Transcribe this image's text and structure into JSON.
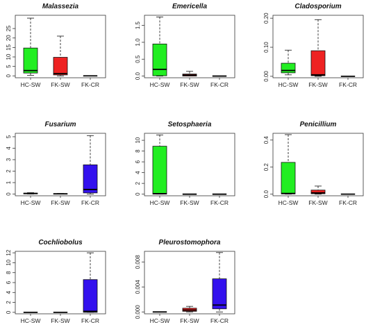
{
  "colors": {
    "HC-SW": "#22ee22",
    "FK-SW": "#ee2222",
    "FK-CR": "#3311ee"
  },
  "chart_data": [
    {
      "type": "box",
      "title": "Malassezia",
      "categories": [
        "HC-SW",
        "FK-SW",
        "FK-CR"
      ],
      "yticks": [
        0,
        5,
        10,
        15,
        20,
        25
      ],
      "ylim": [
        -1,
        32
      ],
      "boxes": [
        {
          "min": 0.3,
          "q1": 1.5,
          "median": 2.8,
          "q3": 14.7,
          "max": 30.5
        },
        {
          "min": 0,
          "q1": 0.5,
          "median": 1.2,
          "q3": 9.8,
          "max": 21
        },
        {
          "min": 0,
          "q1": 0,
          "median": 0,
          "q3": 0,
          "max": 0
        }
      ]
    },
    {
      "type": "box",
      "title": "Emericella",
      "categories": [
        "HC-SW",
        "FK-SW",
        "FK-CR"
      ],
      "yticks": [
        0.0,
        0.5,
        1.0,
        1.5
      ],
      "ytick_labels": [
        "0.0",
        "0.5",
        "1.0",
        "1.5"
      ],
      "ylim": [
        -0.05,
        1.8
      ],
      "boxes": [
        {
          "min": 0,
          "q1": 0.01,
          "median": 0.2,
          "q3": 0.95,
          "max": 1.75
        },
        {
          "min": 0,
          "q1": 0,
          "median": 0.03,
          "q3": 0.06,
          "max": 0.14
        },
        {
          "min": 0,
          "q1": 0,
          "median": 0,
          "q3": 0,
          "max": 0
        }
      ]
    },
    {
      "type": "box",
      "title": "Cladosporium",
      "categories": [
        "HC-SW",
        "FK-SW",
        "FK-CR"
      ],
      "yticks": [
        0.0,
        0.1,
        0.2
      ],
      "ytick_labels": [
        "0.00",
        "0.10",
        "0.20"
      ],
      "ylim": [
        -0.005,
        0.21
      ],
      "boxes": [
        {
          "min": 0.005,
          "q1": 0.012,
          "median": 0.02,
          "q3": 0.045,
          "max": 0.09
        },
        {
          "min": 0,
          "q1": 0.002,
          "median": 0.005,
          "q3": 0.088,
          "max": 0.195
        },
        {
          "min": 0,
          "q1": 0,
          "median": 0,
          "q3": 0,
          "max": 0
        }
      ]
    },
    {
      "type": "box",
      "title": "Fusarium",
      "categories": [
        "HC-SW",
        "FK-SW",
        "FK-CR"
      ],
      "yticks": [
        0,
        1,
        2,
        3,
        4,
        5
      ],
      "ylim": [
        -0.15,
        5.3
      ],
      "boxes": [
        {
          "min": 0,
          "q1": 0.02,
          "median": 0.05,
          "q3": 0.08,
          "max": 0.12
        },
        {
          "min": 0,
          "q1": 0,
          "median": 0.02,
          "q3": 0.03,
          "max": 0.05
        },
        {
          "min": 0,
          "q1": 0.1,
          "median": 0.4,
          "q3": 2.55,
          "max": 5.1
        }
      ]
    },
    {
      "type": "box",
      "title": "Setosphaeria",
      "categories": [
        "HC-SW",
        "FK-SW",
        "FK-CR"
      ],
      "yticks": [
        0,
        2,
        4,
        6,
        8,
        10
      ],
      "ylim": [
        -0.3,
        11.3
      ],
      "boxes": [
        {
          "min": 0,
          "q1": 0,
          "median": 0.1,
          "q3": 8.9,
          "max": 11
        },
        {
          "min": 0,
          "q1": 0,
          "median": 0,
          "q3": 0,
          "max": 0
        },
        {
          "min": 0,
          "q1": 0,
          "median": 0,
          "q3": 0,
          "max": 0
        }
      ]
    },
    {
      "type": "box",
      "title": "Penicillium",
      "categories": [
        "HC-SW",
        "FK-SW",
        "FK-CR"
      ],
      "yticks": [
        0.0,
        0.2,
        0.4
      ],
      "ytick_labels": [
        "0.0",
        "0.2",
        "0.4"
      ],
      "ylim": [
        -0.012,
        0.45
      ],
      "boxes": [
        {
          "min": 0,
          "q1": 0.002,
          "median": 0.005,
          "q3": 0.235,
          "max": 0.44
        },
        {
          "min": 0,
          "q1": 0.003,
          "median": 0.01,
          "q3": 0.03,
          "max": 0.06
        },
        {
          "min": 0,
          "q1": 0,
          "median": 0,
          "q3": 0,
          "max": 0
        }
      ]
    },
    {
      "type": "box",
      "title": "Cochliobolus",
      "categories": [
        "HC-SW",
        "FK-SW",
        "FK-CR"
      ],
      "yticks": [
        0,
        2,
        4,
        6,
        8,
        10,
        12
      ],
      "ylim": [
        -0.3,
        12.3
      ],
      "boxes": [
        {
          "min": 0,
          "q1": 0,
          "median": 0,
          "q3": 0,
          "max": 0
        },
        {
          "min": 0,
          "q1": 0,
          "median": 0,
          "q3": 0,
          "max": 0
        },
        {
          "min": 0,
          "q1": 0,
          "median": 0.2,
          "q3": 6.6,
          "max": 12
        }
      ]
    },
    {
      "type": "box",
      "title": "Pleurostomophora",
      "categories": [
        "HC-SW",
        "FK-SW",
        "FK-CR"
      ],
      "yticks": [
        0.0,
        0.004,
        0.008
      ],
      "ytick_labels": [
        "0.000",
        "0.004",
        "0.008"
      ],
      "ylim": [
        -0.0003,
        0.0097
      ],
      "boxes": [
        {
          "min": 0,
          "q1": 0,
          "median": 0,
          "q3": 0,
          "max": 0
        },
        {
          "min": 0,
          "q1": 0.0001,
          "median": 0.0003,
          "q3": 0.0006,
          "max": 0.0009
        },
        {
          "min": 0,
          "q1": 0.0005,
          "median": 0.0011,
          "q3": 0.0053,
          "max": 0.0095
        }
      ]
    }
  ]
}
